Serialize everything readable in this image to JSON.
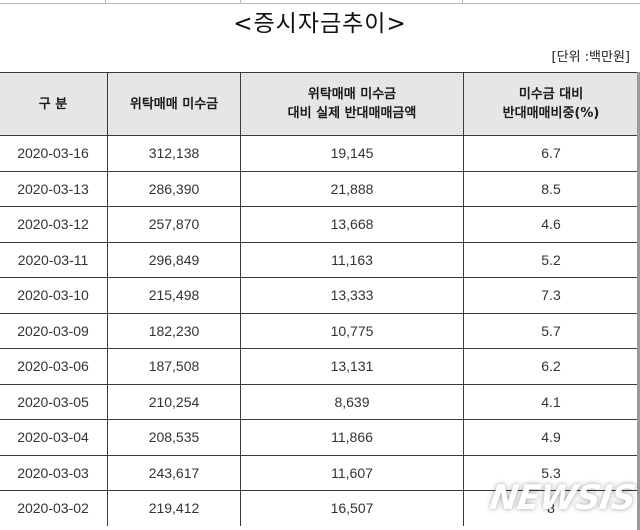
{
  "title": "<증시자금추이>",
  "unit_label": "[단위 :백만원]",
  "table": {
    "headers": [
      "구 분",
      "위탁매매 미수금",
      "위탁매매 미수금\n대비 실제 반대매매금액",
      "미수금 대비\n반대매매비중(%)"
    ],
    "rows": [
      [
        "2020-03-16",
        "312,138",
        "19,145",
        "6.7"
      ],
      [
        "2020-03-13",
        "286,390",
        "21,888",
        "8.5"
      ],
      [
        "2020-03-12",
        "257,870",
        "13,668",
        "4.6"
      ],
      [
        "2020-03-11",
        "296,849",
        "11,163",
        "5.2"
      ],
      [
        "2020-03-10",
        "215,498",
        "13,333",
        "7.3"
      ],
      [
        "2020-03-09",
        "182,230",
        "10,775",
        "5.7"
      ],
      [
        "2020-03-06",
        "187,508",
        "13,131",
        "6.2"
      ],
      [
        "2020-03-05",
        "210,254",
        "8,639",
        "4.1"
      ],
      [
        "2020-03-04",
        "208,535",
        "11,866",
        "4.9"
      ],
      [
        "2020-03-03",
        "243,617",
        "11,607",
        "5.3"
      ],
      [
        "2020-03-02",
        "219,412",
        "16,507",
        "8"
      ]
    ]
  },
  "watermark": "NEWSIS",
  "colors": {
    "header_bg": "#e6e6e6",
    "border": "#3a3a3a",
    "text": "#333333"
  }
}
